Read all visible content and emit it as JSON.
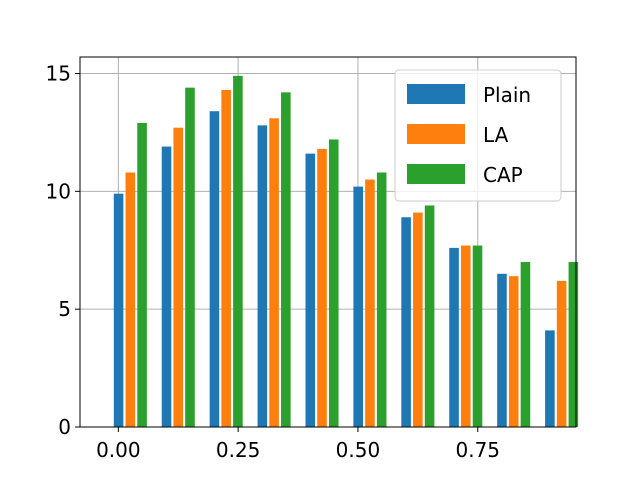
{
  "chart_data": {
    "type": "bar",
    "x_tick_labels": [
      "0.00",
      "0.25",
      "0.50",
      "0.75"
    ],
    "x_ticks": [
      0.0,
      0.25,
      0.5,
      0.75
    ],
    "y_tick_labels": [
      "0",
      "5",
      "10",
      "15"
    ],
    "y_ticks": [
      0,
      5,
      10,
      15
    ],
    "xlim": [
      -0.08,
      0.955
    ],
    "ylim": [
      0,
      15.7
    ],
    "grid": true,
    "legend_position": "top-right",
    "bar_width": 0.02,
    "x": [
      0.025,
      0.125,
      0.225,
      0.325,
      0.425,
      0.525,
      0.625,
      0.725,
      0.825,
      0.925
    ],
    "series": [
      {
        "name": "Plain",
        "color": "#1f77b4",
        "values": [
          9.9,
          11.9,
          13.4,
          12.8,
          11.6,
          10.2,
          8.9,
          7.6,
          6.5,
          4.1
        ]
      },
      {
        "name": "LA",
        "color": "#ff7f0e",
        "values": [
          10.8,
          12.7,
          14.3,
          13.1,
          11.8,
          10.5,
          9.1,
          7.7,
          6.4,
          6.2
        ]
      },
      {
        "name": "CAP",
        "color": "#2ca02c",
        "values": [
          12.9,
          14.4,
          14.9,
          14.2,
          12.2,
          10.8,
          9.4,
          7.7,
          7.0,
          7.0
        ]
      }
    ]
  }
}
